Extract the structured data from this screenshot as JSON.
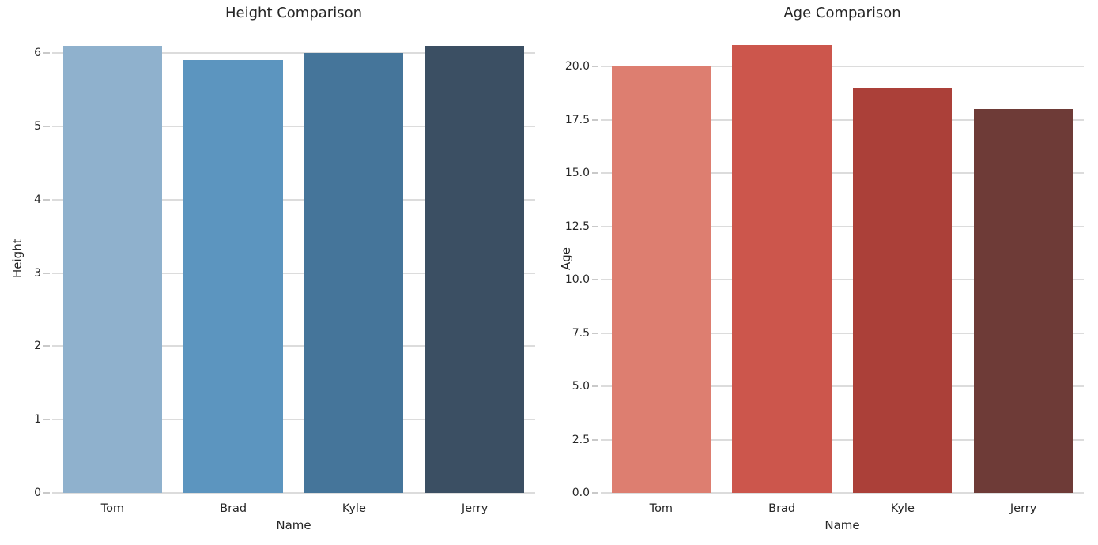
{
  "style": {
    "background": "#ffffff",
    "text_color": "#262626",
    "grid_color": "#dcdcdc",
    "tick_color": "#c9c9c9"
  },
  "chart_data": [
    {
      "type": "bar",
      "title": "Height Comparison",
      "xlabel": "Name",
      "ylabel": "Height",
      "categories": [
        "Tom",
        "Brad",
        "Kyle",
        "Jerry"
      ],
      "values": [
        6.1,
        5.9,
        6.0,
        6.1
      ],
      "ylim": [
        0,
        6.4
      ],
      "yticks": [
        0,
        1,
        2,
        3,
        4,
        5,
        6
      ],
      "ytick_labels": [
        "0",
        "1",
        "2",
        "3",
        "4",
        "5",
        "6"
      ],
      "bar_colors": [
        "#8FB1CD",
        "#5C95BF",
        "#45759A",
        "#3B4F63"
      ],
      "grid": true,
      "legend": "none"
    },
    {
      "type": "bar",
      "title": "Age Comparison",
      "xlabel": "Name",
      "ylabel": "Age",
      "categories": [
        "Tom",
        "Brad",
        "Kyle",
        "Jerry"
      ],
      "values": [
        20,
        21,
        19,
        18
      ],
      "ylim": [
        0,
        22
      ],
      "yticks": [
        0,
        2.5,
        5,
        7.5,
        10,
        12.5,
        15,
        17.5,
        20
      ],
      "ytick_labels": [
        "0.0",
        "2.5",
        "5.0",
        "7.5",
        "10.0",
        "12.5",
        "15.0",
        "17.5",
        "20.0"
      ],
      "bar_colors": [
        "#DD7E70",
        "#CC564C",
        "#AB4039",
        "#6E3B37"
      ],
      "grid": true,
      "legend": "none"
    }
  ]
}
